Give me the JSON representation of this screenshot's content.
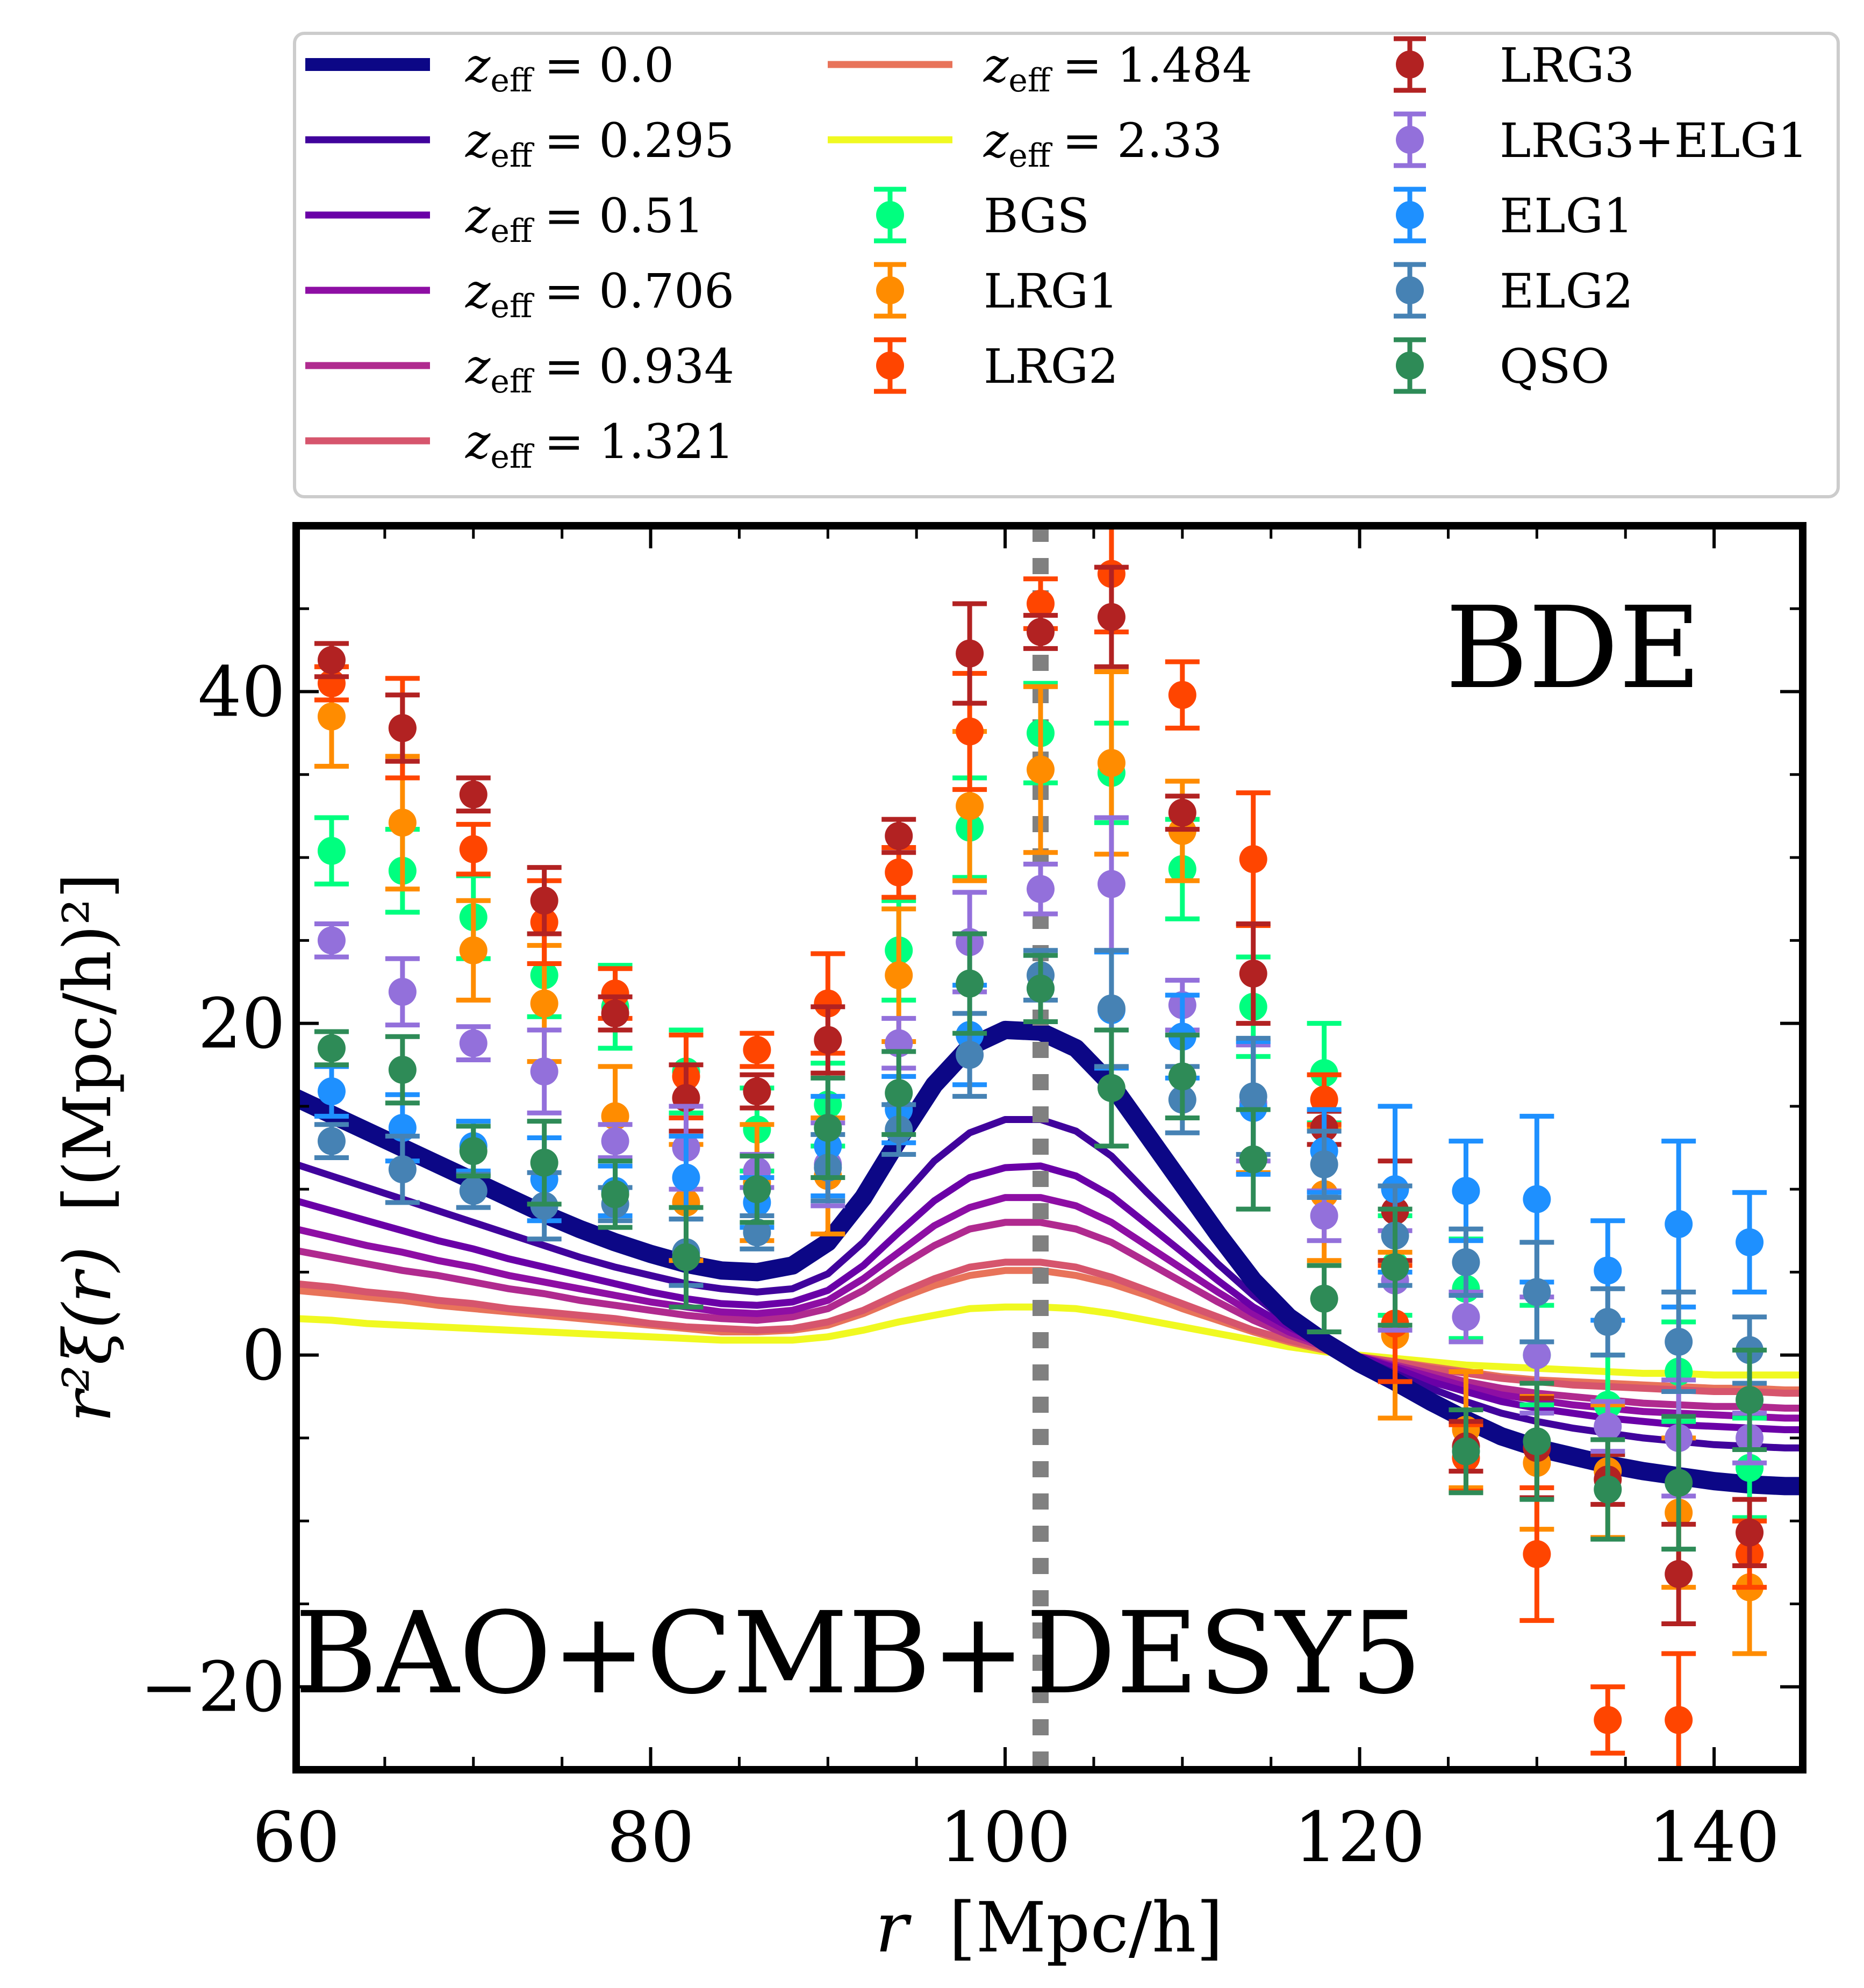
{
  "chart_data": {
    "type": "line",
    "title": "",
    "annotations": {
      "top_right": "BDE",
      "bottom_left": "BAO+CMB+DESY5"
    },
    "xlabel": {
      "variable": "r",
      "unit": "[Mpc/h]"
    },
    "ylabel": {
      "main": "r²ξ(r)",
      "unit": "[(Mpc/h)²]"
    },
    "xlim": [
      60,
      145
    ],
    "ylim": [
      -25,
      50
    ],
    "x_ticks": [
      60,
      80,
      100,
      120,
      140
    ],
    "x_tick_labels": [
      "60",
      "80",
      "100",
      "120",
      "140"
    ],
    "y_ticks": [
      -20,
      0,
      20,
      40
    ],
    "y_tick_labels": [
      "−20",
      "0",
      "20",
      "40"
    ],
    "vertical_line": {
      "x": 102,
      "style": "dotted",
      "color": "#808080"
    },
    "legend": {
      "location": "top",
      "columns": 3
    },
    "x_model": [
      60,
      62,
      64,
      66,
      68,
      70,
      72,
      74,
      76,
      78,
      80,
      82,
      84,
      86,
      88,
      90,
      92,
      94,
      96,
      98,
      100,
      102,
      104,
      106,
      108,
      110,
      112,
      114,
      116,
      118,
      120,
      122,
      124,
      126,
      128,
      130,
      132,
      134,
      136,
      138,
      140,
      142,
      144,
      145
    ],
    "model_series": [
      {
        "name": "z_eff = 0.0",
        "label_var": "z",
        "label_sub": "eff",
        "label_val": "= 0.0",
        "color": "#0c0786",
        "width": 34,
        "values": [
          15.5,
          14.5,
          13.5,
          12.5,
          11.5,
          10.5,
          9.5,
          8.5,
          7.6,
          6.8,
          6.1,
          5.5,
          5.1,
          5.0,
          5.4,
          6.8,
          9.5,
          13.0,
          16.3,
          18.6,
          19.6,
          19.5,
          18.5,
          16.3,
          13.3,
          10.3,
          7.3,
          4.5,
          2.3,
          0.8,
          -0.5,
          -1.6,
          -2.8,
          -3.9,
          -4.9,
          -5.6,
          -6.1,
          -6.6,
          -7.0,
          -7.3,
          -7.6,
          -7.8,
          -7.9,
          -7.9
        ]
      },
      {
        "name": "z_eff = 0.295",
        "label_var": "z",
        "label_sub": "eff",
        "label_val": "= 0.295",
        "color": "#40039c",
        "width": 13,
        "values": [
          11.5,
          10.8,
          10.1,
          9.4,
          8.7,
          8.0,
          7.3,
          6.6,
          5.9,
          5.3,
          4.8,
          4.3,
          4.0,
          3.8,
          4.0,
          4.9,
          6.8,
          9.3,
          11.7,
          13.4,
          14.2,
          14.2,
          13.5,
          12.0,
          9.8,
          7.7,
          5.5,
          3.6,
          2.0,
          0.9,
          -0.2,
          -1.1,
          -2.0,
          -2.8,
          -3.5,
          -4.0,
          -4.4,
          -4.7,
          -5.0,
          -5.2,
          -5.4,
          -5.5,
          -5.6,
          -5.6
        ]
      },
      {
        "name": "z_eff = 0.51",
        "label_var": "z",
        "label_sub": "eff",
        "label_val": "= 0.51",
        "color": "#6a00a7",
        "width": 13,
        "values": [
          9.3,
          8.7,
          8.1,
          7.5,
          6.9,
          6.4,
          5.8,
          5.3,
          4.8,
          4.3,
          3.8,
          3.4,
          3.1,
          3.0,
          3.2,
          3.9,
          5.4,
          7.4,
          9.3,
          10.7,
          11.3,
          11.4,
          10.8,
          9.6,
          7.9,
          6.2,
          4.5,
          2.9,
          1.7,
          0.7,
          -0.1,
          -0.8,
          -1.6,
          -2.2,
          -2.8,
          -3.2,
          -3.5,
          -3.8,
          -4.0,
          -4.2,
          -4.3,
          -4.4,
          -4.5,
          -4.5
        ]
      },
      {
        "name": "z_eff = 0.706",
        "label_var": "z",
        "label_sub": "eff",
        "label_val": "= 0.706",
        "color": "#8e0ea4",
        "width": 13,
        "values": [
          7.6,
          7.1,
          6.6,
          6.2,
          5.7,
          5.3,
          4.8,
          4.4,
          4.0,
          3.6,
          3.2,
          2.9,
          2.6,
          2.5,
          2.7,
          3.3,
          4.6,
          6.2,
          7.8,
          8.9,
          9.5,
          9.5,
          9.0,
          8.0,
          6.6,
          5.2,
          3.8,
          2.5,
          1.4,
          0.6,
          -0.1,
          -0.7,
          -1.3,
          -1.9,
          -2.4,
          -2.7,
          -3.0,
          -3.2,
          -3.4,
          -3.5,
          -3.6,
          -3.7,
          -3.8,
          -3.8
        ]
      },
      {
        "name": "z_eff = 0.934",
        "label_var": "z",
        "label_sub": "eff",
        "label_val": "= 0.934",
        "color": "#b02a8f",
        "width": 13,
        "values": [
          6.3,
          5.9,
          5.5,
          5.1,
          4.8,
          4.4,
          4.0,
          3.7,
          3.3,
          3.0,
          2.7,
          2.4,
          2.2,
          2.1,
          2.3,
          2.8,
          3.9,
          5.3,
          6.6,
          7.6,
          8.0,
          8.0,
          7.6,
          6.8,
          5.6,
          4.4,
          3.2,
          2.1,
          1.2,
          0.5,
          -0.1,
          -0.6,
          -1.1,
          -1.6,
          -2.0,
          -2.3,
          -2.5,
          -2.7,
          -2.9,
          -3.0,
          -3.1,
          -3.1,
          -3.2,
          -3.2
        ]
      },
      {
        "name": "z_eff = 1.321",
        "label_var": "z",
        "label_sub": "eff",
        "label_val": "= 1.321",
        "color": "#d6556d",
        "width": 13,
        "values": [
          4.3,
          4.1,
          3.8,
          3.6,
          3.3,
          3.1,
          2.8,
          2.6,
          2.4,
          2.2,
          1.9,
          1.7,
          1.6,
          1.5,
          1.6,
          2.0,
          2.7,
          3.7,
          4.6,
          5.3,
          5.6,
          5.6,
          5.3,
          4.7,
          3.9,
          3.1,
          2.3,
          1.5,
          0.9,
          0.4,
          -0.1,
          -0.4,
          -0.8,
          -1.1,
          -1.4,
          -1.6,
          -1.8,
          -1.9,
          -2.0,
          -2.1,
          -2.2,
          -2.2,
          -2.3,
          -2.3
        ]
      },
      {
        "name": "z_eff = 1.484",
        "label_var": "z",
        "label_sub": "eff",
        "label_val": "= 1.484",
        "color": "#e8735a",
        "width": 13,
        "values": [
          3.9,
          3.7,
          3.5,
          3.3,
          3.0,
          2.8,
          2.6,
          2.4,
          2.2,
          2.0,
          1.8,
          1.6,
          1.4,
          1.4,
          1.5,
          1.8,
          2.5,
          3.4,
          4.2,
          4.8,
          5.1,
          5.1,
          4.8,
          4.3,
          3.6,
          2.8,
          2.1,
          1.4,
          0.8,
          0.3,
          -0.1,
          -0.4,
          -0.7,
          -1.0,
          -1.3,
          -1.5,
          -1.6,
          -1.7,
          -1.8,
          -1.9,
          -2.0,
          -2.0,
          -2.1,
          -2.1
        ]
      },
      {
        "name": "z_eff = 2.33",
        "label_var": "z",
        "label_sub": "eff",
        "label_val": "= 2.33",
        "color": "#f0f921",
        "width": 13,
        "values": [
          2.2,
          2.1,
          1.9,
          1.8,
          1.7,
          1.6,
          1.5,
          1.4,
          1.3,
          1.2,
          1.1,
          1.0,
          0.9,
          0.9,
          0.9,
          1.1,
          1.5,
          2.0,
          2.4,
          2.8,
          2.9,
          2.9,
          2.8,
          2.5,
          2.1,
          1.7,
          1.3,
          0.9,
          0.5,
          0.2,
          0.0,
          -0.2,
          -0.4,
          -0.6,
          -0.7,
          -0.8,
          -0.9,
          -1.0,
          -1.1,
          -1.1,
          -1.2,
          -1.2,
          -1.2,
          -1.2
        ]
      }
    ],
    "x_data": [
      62,
      66,
      70,
      74,
      78,
      82,
      86,
      90,
      94,
      98,
      102,
      106,
      110,
      114,
      118,
      122,
      126,
      130,
      134,
      138,
      142
    ],
    "data_series": [
      {
        "name": "BGS",
        "color": "#00ff7f",
        "values": [
          30.4,
          29.2,
          26.4,
          22.9,
          21.0,
          17.1,
          13.6,
          15.1,
          24.4,
          31.8,
          37.5,
          35.1,
          29.3,
          21.0,
          17.0,
          5.4,
          4.0,
          0.0,
          -3.0,
          -1.0,
          -6.8
        ],
        "errors": [
          2.0,
          2.5,
          2.5,
          2.5,
          2.5,
          2.5,
          2.5,
          2.5,
          3.0,
          3.0,
          3.0,
          3.0,
          3.0,
          3.0,
          3.0,
          3.0,
          3.0,
          3.0,
          3.0,
          3.0,
          3.0
        ]
      },
      {
        "name": "LRG1",
        "color": "#ff8c00",
        "values": [
          38.5,
          32.1,
          24.4,
          21.2,
          14.4,
          9.2,
          10.4,
          10.8,
          22.9,
          33.1,
          35.3,
          35.7,
          31.6,
          15.0,
          9.7,
          1.2,
          -4.5,
          -6.5,
          -7.0,
          -9.5,
          -14.0
        ],
        "errors": [
          3.0,
          4.0,
          3.0,
          3.5,
          3.0,
          3.5,
          3.5,
          3.5,
          4.0,
          4.5,
          5.0,
          5.5,
          3.0,
          4.0,
          4.0,
          5.0,
          3.5,
          4.0,
          4.0,
          4.5,
          4.0
        ]
      },
      {
        "name": "LRG2",
        "color": "#ff4500",
        "values": [
          40.5,
          37.8,
          30.5,
          26.1,
          21.8,
          16.8,
          18.4,
          21.2,
          29.1,
          37.6,
          45.3,
          47.1,
          39.8,
          29.9,
          15.4,
          1.9,
          -6.2,
          -12.0,
          -22.0,
          -22.0,
          -12.0
        ],
        "errors": [
          1.0,
          3.0,
          1.5,
          2.5,
          1.5,
          2.5,
          1.0,
          3.0,
          1.5,
          3.5,
          1.5,
          3.5,
          2.0,
          4.0,
          1.5,
          3.5,
          2.0,
          4.0,
          2.0,
          4.0,
          2.0
        ]
      },
      {
        "name": "LRG3",
        "color": "#b22222",
        "values": [
          41.9,
          37.8,
          33.8,
          27.4,
          20.6,
          15.5,
          15.9,
          19.0,
          31.3,
          42.3,
          43.6,
          44.5,
          32.7,
          23.0,
          13.7,
          8.7,
          -5.5,
          -5.6,
          -7.5,
          -13.2,
          -10.7
        ],
        "errors": [
          1.0,
          2.0,
          1.0,
          2.0,
          1.0,
          2.0,
          1.0,
          2.0,
          1.0,
          3.0,
          1.0,
          3.0,
          1.0,
          3.0,
          1.0,
          3.0,
          1.5,
          3.0,
          1.5,
          3.0,
          2.0
        ]
      },
      {
        "name": "LRG3+ELG1",
        "color": "#9370db",
        "values": [
          25.0,
          21.9,
          18.8,
          17.1,
          12.9,
          12.5,
          11.1,
          11.5,
          18.8,
          24.9,
          28.1,
          28.4,
          21.1,
          15.2,
          8.4,
          4.5,
          2.3,
          0.0,
          -4.3,
          -5.0,
          -5.0
        ],
        "errors": [
          1.0,
          2.0,
          1.0,
          2.5,
          1.0,
          2.5,
          1.0,
          2.5,
          1.5,
          3.0,
          1.5,
          4.0,
          1.5,
          3.5,
          1.5,
          3.0,
          1.5,
          3.5,
          1.5,
          3.5,
          1.5
        ]
      },
      {
        "name": "ELG1",
        "color": "#1e90ff",
        "values": [
          15.9,
          13.7,
          12.6,
          10.6,
          9.9,
          10.7,
          9.2,
          12.6,
          14.8,
          19.3,
          22.1,
          20.8,
          19.2,
          14.9,
          12.3,
          10.0,
          9.9,
          9.4,
          5.1,
          7.9,
          6.8
        ],
        "errors": [
          1.5,
          2.0,
          1.5,
          2.5,
          1.5,
          2.5,
          1.5,
          3.0,
          2.0,
          3.0,
          2.0,
          3.5,
          2.5,
          4.0,
          2.5,
          5.0,
          3.0,
          5.0,
          3.0,
          5.0,
          3.0
        ]
      },
      {
        "name": "ELG2",
        "color": "#4682b4",
        "values": [
          12.9,
          11.2,
          9.9,
          9.0,
          9.1,
          6.2,
          7.4,
          11.3,
          13.6,
          18.1,
          22.9,
          20.9,
          15.4,
          15.6,
          11.5,
          7.2,
          5.6,
          3.8,
          2.0,
          0.8,
          0.3
        ],
        "errors": [
          1.0,
          2.0,
          1.0,
          2.0,
          1.0,
          2.0,
          1.0,
          2.0,
          1.5,
          2.5,
          1.5,
          3.5,
          2.0,
          3.5,
          2.0,
          3.0,
          2.0,
          3.0,
          2.0,
          3.0,
          2.0
        ]
      },
      {
        "name": "QSO",
        "color": "#2e8b57",
        "values": [
          18.5,
          17.2,
          12.3,
          11.6,
          9.7,
          5.9,
          10.0,
          13.7,
          15.8,
          22.4,
          22.1,
          16.1,
          16.8,
          11.8,
          3.4,
          5.3,
          -5.8,
          -5.2,
          -8.1,
          -7.7,
          -2.7
        ],
        "errors": [
          1.0,
          2.0,
          1.5,
          2.5,
          2.0,
          3.0,
          2.0,
          3.0,
          2.5,
          3.0,
          2.0,
          3.5,
          2.5,
          3.0,
          2.0,
          3.5,
          2.5,
          3.5,
          3.0,
          4.0,
          3.0
        ]
      }
    ]
  }
}
